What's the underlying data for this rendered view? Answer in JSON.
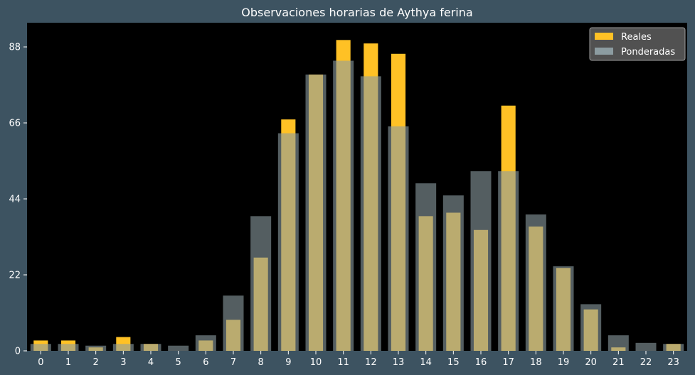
{
  "chart_data": {
    "type": "bar",
    "title": "Observaciones horarias de Aythya ferina",
    "xlabel": "",
    "ylabel": "",
    "categories": [
      "0",
      "1",
      "2",
      "3",
      "4",
      "5",
      "6",
      "7",
      "8",
      "9",
      "10",
      "11",
      "12",
      "13",
      "14",
      "15",
      "16",
      "17",
      "18",
      "19",
      "20",
      "21",
      "22",
      "23"
    ],
    "series": [
      {
        "name": "Reales",
        "color": "#ffc125",
        "values": [
          3,
          3,
          1,
          4,
          2,
          0,
          3,
          9,
          27,
          67,
          80,
          90,
          89,
          86,
          39,
          40,
          35,
          71,
          36,
          24,
          12,
          1,
          0,
          2
        ]
      },
      {
        "name": "Ponderadas",
        "color": "#8c9ca1",
        "values": [
          2,
          2,
          1.5,
          2,
          2,
          1.5,
          4.5,
          16,
          39,
          63,
          80,
          84,
          79.5,
          65,
          48.5,
          45,
          52,
          52,
          39.5,
          24.5,
          13.5,
          4.5,
          2.3,
          2
        ]
      }
    ],
    "ylim": [
      0,
      95
    ],
    "yticks": [
      0,
      22,
      44,
      66,
      88
    ],
    "legend_position": "top-right",
    "background": "#000000",
    "figure_background": "#3d5361"
  }
}
